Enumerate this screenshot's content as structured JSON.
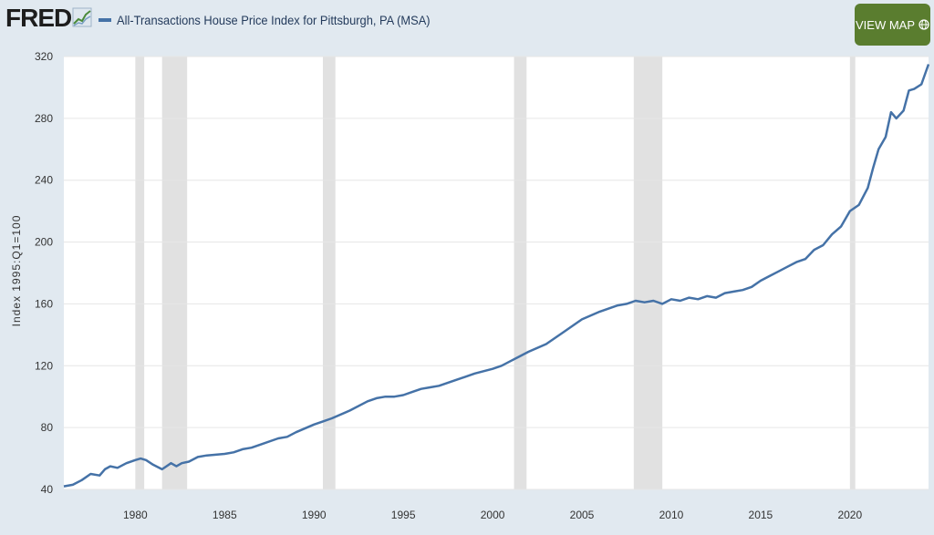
{
  "header": {
    "logo_text": "FRED",
    "logo_icon": "chart-trend-icon",
    "map_button_label": "VIEW MAP",
    "map_button_icon": "globe-icon"
  },
  "colors": {
    "series": "#4572a7",
    "recession": "#e1e1e1",
    "button": "#5a7d2f",
    "background": "#e1e9f0"
  },
  "chart_data": {
    "type": "line",
    "title": "",
    "xlabel": "",
    "ylabel": "Index 1995:Q1=100",
    "xlim": [
      1976.0,
      2024.4
    ],
    "ylim": [
      40,
      320
    ],
    "yticks": [
      40,
      80,
      120,
      160,
      200,
      240,
      280,
      320
    ],
    "xticks": [
      1980,
      1985,
      1990,
      1995,
      2000,
      2005,
      2010,
      2015,
      2020
    ],
    "grid": "horizontal",
    "legend": "top-left",
    "recessions": [
      [
        1980.0,
        1980.5
      ],
      [
        1981.5,
        1982.9
      ],
      [
        1990.5,
        1991.2
      ],
      [
        2001.2,
        2001.9
      ],
      [
        2007.9,
        2009.5
      ],
      [
        2020.0,
        2020.3
      ]
    ],
    "series": [
      {
        "name": "All-Transactions House Price Index for Pittsburgh, PA (MSA)",
        "x": [
          1976.0,
          1976.5,
          1977.0,
          1977.5,
          1978.0,
          1978.3,
          1978.6,
          1979.0,
          1979.5,
          1980.0,
          1980.3,
          1980.6,
          1981.0,
          1981.5,
          1982.0,
          1982.3,
          1982.6,
          1983.0,
          1983.5,
          1984.0,
          1985.0,
          1985.5,
          1986.0,
          1986.5,
          1987.0,
          1988.0,
          1988.5,
          1989.0,
          1990.0,
          1990.5,
          1991.0,
          1992.0,
          1993.0,
          1993.5,
          1994.0,
          1994.5,
          1995.0,
          1995.5,
          1996.0,
          1996.5,
          1997.0,
          1998.0,
          1999.0,
          2000.0,
          2000.5,
          2001.0,
          2001.5,
          2002.0,
          2003.0,
          2004.0,
          2005.0,
          2006.0,
          2007.0,
          2007.5,
          2008.0,
          2008.5,
          2009.0,
          2009.5,
          2010.0,
          2010.5,
          2011.0,
          2011.5,
          2012.0,
          2012.5,
          2013.0,
          2013.5,
          2014.0,
          2014.5,
          2015.0,
          2015.5,
          2016.0,
          2016.5,
          2017.0,
          2017.5,
          2018.0,
          2018.5,
          2019.0,
          2019.5,
          2020.0,
          2020.5,
          2021.0,
          2021.3,
          2021.6,
          2022.0,
          2022.3,
          2022.6,
          2023.0,
          2023.3,
          2023.6,
          2024.0,
          2024.4
        ],
        "values": [
          42,
          43,
          46,
          50,
          49,
          53,
          55,
          54,
          57,
          59,
          60,
          59,
          56,
          53,
          57,
          55,
          57,
          58,
          61,
          62,
          63,
          64,
          66,
          67,
          69,
          73,
          74,
          77,
          82,
          84,
          86,
          91,
          97,
          99,
          100,
          100,
          101,
          103,
          105,
          106,
          107,
          111,
          115,
          118,
          120,
          123,
          126,
          129,
          134,
          142,
          150,
          155,
          159,
          160,
          162,
          161,
          162,
          160,
          163,
          162,
          164,
          163,
          165,
          164,
          167,
          168,
          169,
          171,
          175,
          178,
          181,
          184,
          187,
          189,
          195,
          198,
          205,
          210,
          220,
          224,
          235,
          248,
          260,
          268,
          284,
          280,
          285,
          298,
          299,
          302,
          315
        ]
      }
    ]
  }
}
